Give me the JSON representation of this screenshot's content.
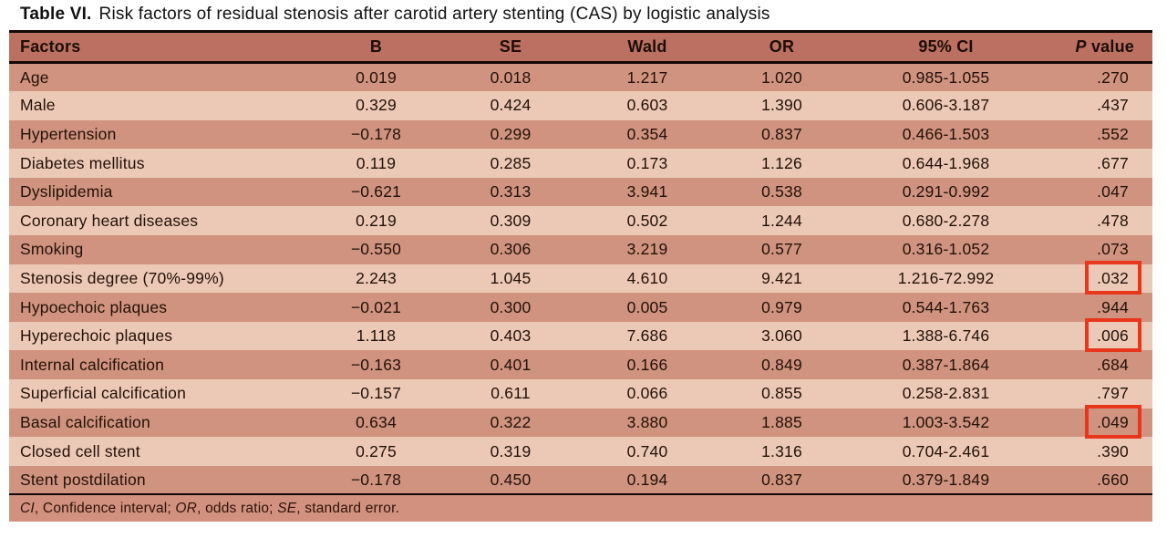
{
  "title": {
    "label": "Table VI.",
    "text": "Risk factors of residual stenosis after carotid artery stenting (CAS) by logistic analysis"
  },
  "table": {
    "header": {
      "factors": "Factors",
      "b": "B",
      "se": "SE",
      "wald": "Wald",
      "or": "OR",
      "ci": "95% CI",
      "p_italic": "P",
      "p_rest": " value"
    },
    "rows": [
      {
        "factor": "Age",
        "b": "0.019",
        "se": "0.018",
        "wald": "1.217",
        "or": "1.020",
        "ci": "0.985-1.055",
        "p": ".270",
        "highlight": false
      },
      {
        "factor": "Male",
        "b": "0.329",
        "se": "0.424",
        "wald": "0.603",
        "or": "1.390",
        "ci": "0.606-3.187",
        "p": ".437",
        "highlight": false
      },
      {
        "factor": "Hypertension",
        "b": "−0.178",
        "se": "0.299",
        "wald": "0.354",
        "or": "0.837",
        "ci": "0.466-1.503",
        "p": ".552",
        "highlight": false
      },
      {
        "factor": "Diabetes mellitus",
        "b": "0.119",
        "se": "0.285",
        "wald": "0.173",
        "or": "1.126",
        "ci": "0.644-1.968",
        "p": ".677",
        "highlight": false
      },
      {
        "factor": "Dyslipidemia",
        "b": "−0.621",
        "se": "0.313",
        "wald": "3.941",
        "or": "0.538",
        "ci": "0.291-0.992",
        "p": ".047",
        "highlight": false
      },
      {
        "factor": "Coronary heart diseases",
        "b": "0.219",
        "se": "0.309",
        "wald": "0.502",
        "or": "1.244",
        "ci": "0.680-2.278",
        "p": ".478",
        "highlight": false
      },
      {
        "factor": "Smoking",
        "b": "−0.550",
        "se": "0.306",
        "wald": "3.219",
        "or": "0.577",
        "ci": "0.316-1.052",
        "p": ".073",
        "highlight": false
      },
      {
        "factor": "Stenosis degree (70%-99%)",
        "b": "2.243",
        "se": "1.045",
        "wald": "4.610",
        "or": "9.421",
        "ci": "1.216-72.992",
        "p": ".032",
        "highlight": true
      },
      {
        "factor": "Hypoechoic plaques",
        "b": "−0.021",
        "se": "0.300",
        "wald": "0.005",
        "or": "0.979",
        "ci": "0.544-1.763",
        "p": ".944",
        "highlight": false
      },
      {
        "factor": "Hyperechoic plaques",
        "b": "1.118",
        "se": "0.403",
        "wald": "7.686",
        "or": "3.060",
        "ci": "1.388-6.746",
        "p": ".006",
        "highlight": true
      },
      {
        "factor": "Internal calcification",
        "b": "−0.163",
        "se": "0.401",
        "wald": "0.166",
        "or": "0.849",
        "ci": "0.387-1.864",
        "p": ".684",
        "highlight": false
      },
      {
        "factor": "Superficial calcification",
        "b": "−0.157",
        "se": "0.611",
        "wald": "0.066",
        "or": "0.855",
        "ci": "0.258-2.831",
        "p": ".797",
        "highlight": false
      },
      {
        "factor": "Basal calcification",
        "b": "0.634",
        "se": "0.322",
        "wald": "3.880",
        "or": "1.885",
        "ci": "1.003-3.542",
        "p": ".049",
        "highlight": true
      },
      {
        "factor": "Closed cell stent",
        "b": "0.275",
        "se": "0.319",
        "wald": "0.740",
        "or": "1.316",
        "ci": "0.704-2.461",
        "p": ".390",
        "highlight": false
      },
      {
        "factor": "Stent postdilation",
        "b": "−0.178",
        "se": "0.450",
        "wald": "0.194",
        "or": "0.837",
        "ci": "0.379-1.849",
        "p": ".660",
        "highlight": false
      }
    ],
    "footnote": {
      "segments": [
        {
          "t": "CI",
          "i": true
        },
        {
          "t": ", Confidence interval; ",
          "i": false
        },
        {
          "t": "OR",
          "i": true
        },
        {
          "t": ", odds ratio; ",
          "i": false
        },
        {
          "t": "SE",
          "i": true
        },
        {
          "t": ", standard error.",
          "i": false
        }
      ]
    }
  },
  "colors": {
    "header_bg": "#bb7061",
    "row_dark": "#d0937f",
    "row_light": "#ecc9b6",
    "footnote_bg": "#d1917e",
    "text_dark": "#221108",
    "border_black": "#120705",
    "highlight_red": "#e8361d",
    "page_bg": "#ffffff"
  }
}
